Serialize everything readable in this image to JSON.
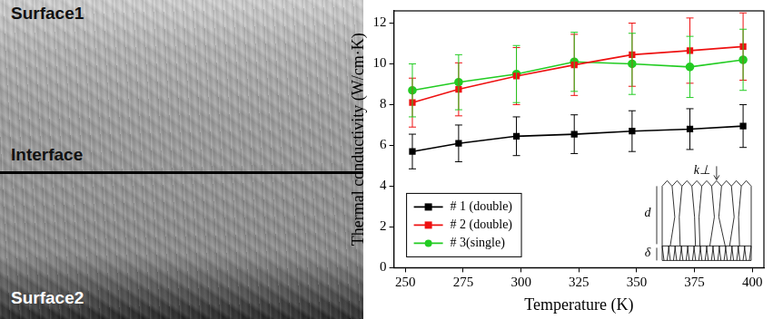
{
  "image": {
    "labels": [
      "Surface1",
      "Interface",
      "Surface2"
    ]
  },
  "chart_data": {
    "type": "line",
    "x_label": "Temperature (K)",
    "y_label": "Thermal conductivity (W/cm·K)",
    "x": [
      253,
      273,
      298,
      323,
      348,
      373,
      396
    ],
    "series": [
      {
        "name": "# 1 (double)",
        "color": "#000000",
        "marker": "square",
        "line_style": "solid",
        "values": [
          5.7,
          6.1,
          6.45,
          6.55,
          6.7,
          6.8,
          6.95
        ],
        "errors": [
          0.85,
          0.9,
          0.95,
          0.95,
          1.0,
          1.0,
          1.05
        ]
      },
      {
        "name": "# 2 (double)",
        "color": "#ee1111",
        "marker": "square",
        "line_style": "solid",
        "values": [
          8.1,
          8.75,
          9.4,
          9.95,
          10.45,
          10.65,
          10.85
        ],
        "errors": [
          1.2,
          1.3,
          1.4,
          1.5,
          1.55,
          1.6,
          1.65
        ]
      },
      {
        "name": "# 3(single)",
        "color": "#22cc22",
        "marker": "circle",
        "line_style": "solid",
        "values": [
          8.7,
          9.1,
          9.5,
          10.1,
          10.0,
          9.85,
          10.2
        ],
        "errors": [
          1.3,
          1.35,
          1.4,
          1.45,
          1.5,
          1.5,
          1.5
        ]
      }
    ],
    "xlim": [
      245,
      405
    ],
    "xticks": [
      250,
      275,
      300,
      325,
      350,
      375,
      400
    ],
    "ylim": [
      0,
      12.6
    ],
    "yticks": [
      0,
      2,
      4,
      6,
      8,
      10,
      12
    ],
    "grid": false,
    "legend": "lower left",
    "annotations": [
      "k⊥",
      "d",
      "δ"
    ]
  }
}
